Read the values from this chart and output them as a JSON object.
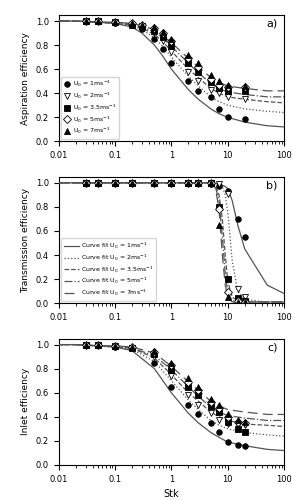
{
  "title_a": "a)",
  "title_b": "b)",
  "title_c": "c)",
  "xlabel": "Stk",
  "ylabel_a": "Aspiration efficiency",
  "ylabel_b": "Transmission efficiency",
  "ylabel_c": "Inlet efficiency",
  "speeds": [
    "1",
    "2",
    "3.5",
    "5",
    "7"
  ],
  "markers_a": {
    "1": {
      "x": [
        0.03,
        0.05,
        0.1,
        0.2,
        0.3,
        0.5,
        0.7,
        1.0,
        2.0,
        3.0,
        5.0,
        7.0,
        10.0,
        20.0
      ],
      "y": [
        1.0,
        1.0,
        0.98,
        0.97,
        0.93,
        0.85,
        0.77,
        0.65,
        0.5,
        0.42,
        0.37,
        0.27,
        0.2,
        0.19
      ],
      "marker": "o",
      "ms": 4,
      "filled": true
    },
    "2": {
      "x": [
        0.03,
        0.05,
        0.1,
        0.2,
        0.3,
        0.5,
        0.7,
        1.0,
        2.0,
        3.0,
        5.0,
        7.0,
        10.0,
        20.0
      ],
      "y": [
        1.0,
        1.0,
        0.98,
        0.97,
        0.95,
        0.9,
        0.83,
        0.74,
        0.58,
        0.5,
        0.43,
        0.4,
        0.37,
        0.35
      ],
      "marker": "v",
      "ms": 5,
      "filled": false
    },
    "3.5": {
      "x": [
        0.03,
        0.05,
        0.1,
        0.2,
        0.3,
        0.5,
        0.7,
        1.0,
        2.0,
        3.0,
        5.0,
        7.0,
        10.0,
        20.0
      ],
      "y": [
        1.0,
        1.0,
        0.99,
        0.97,
        0.96,
        0.92,
        0.87,
        0.79,
        0.65,
        0.58,
        0.49,
        0.44,
        0.42,
        0.42
      ],
      "marker": "s",
      "ms": 4,
      "filled": true
    },
    "5": {
      "x": [
        0.03,
        0.05,
        0.1,
        0.2,
        0.3,
        0.5,
        0.7,
        1.0,
        2.0,
        3.0,
        5.0,
        7.0,
        10.0,
        20.0
      ],
      "y": [
        1.0,
        1.0,
        0.99,
        0.98,
        0.97,
        0.94,
        0.9,
        0.83,
        0.69,
        0.62,
        0.52,
        0.47,
        0.45,
        0.45
      ],
      "marker": "D",
      "ms": 4,
      "filled": false
    },
    "7": {
      "x": [
        0.03,
        0.05,
        0.1,
        0.2,
        0.3,
        0.5,
        0.7,
        1.0,
        2.0,
        3.0,
        5.0,
        7.0,
        10.0,
        20.0
      ],
      "y": [
        1.0,
        1.0,
        0.99,
        0.98,
        0.97,
        0.95,
        0.91,
        0.85,
        0.72,
        0.65,
        0.55,
        0.5,
        0.47,
        0.46
      ],
      "marker": "^",
      "ms": 4,
      "filled": true
    }
  },
  "curves_a": {
    "1": {
      "style": "solid",
      "x": [
        0.01,
        0.02,
        0.05,
        0.1,
        0.2,
        0.3,
        0.5,
        0.7,
        1,
        2,
        3,
        5,
        7,
        10,
        20,
        50,
        100
      ],
      "y": [
        1.0,
        1.0,
        0.99,
        0.98,
        0.95,
        0.9,
        0.8,
        0.71,
        0.6,
        0.43,
        0.35,
        0.27,
        0.23,
        0.2,
        0.16,
        0.13,
        0.12
      ]
    },
    "2": {
      "style": "dotted",
      "x": [
        0.01,
        0.02,
        0.05,
        0.1,
        0.2,
        0.3,
        0.5,
        0.7,
        1,
        2,
        3,
        5,
        7,
        10,
        20,
        50,
        100
      ],
      "y": [
        1.0,
        1.0,
        0.99,
        0.98,
        0.96,
        0.93,
        0.86,
        0.79,
        0.7,
        0.54,
        0.46,
        0.37,
        0.33,
        0.3,
        0.27,
        0.25,
        0.24
      ]
    },
    "3.5": {
      "style": "dashed",
      "x": [
        0.01,
        0.02,
        0.05,
        0.1,
        0.2,
        0.3,
        0.5,
        0.7,
        1,
        2,
        3,
        5,
        7,
        10,
        20,
        50,
        100
      ],
      "y": [
        1.0,
        1.0,
        0.99,
        0.98,
        0.97,
        0.94,
        0.89,
        0.83,
        0.75,
        0.6,
        0.53,
        0.44,
        0.4,
        0.37,
        0.35,
        0.33,
        0.32
      ]
    },
    "5": {
      "style": "dashdot",
      "x": [
        0.01,
        0.02,
        0.05,
        0.1,
        0.2,
        0.3,
        0.5,
        0.7,
        1,
        2,
        3,
        5,
        7,
        10,
        20,
        50,
        100
      ],
      "y": [
        1.0,
        1.0,
        0.99,
        0.99,
        0.97,
        0.95,
        0.91,
        0.86,
        0.79,
        0.65,
        0.57,
        0.48,
        0.44,
        0.41,
        0.39,
        0.37,
        0.37
      ]
    },
    "7": {
      "style": "loosedash",
      "x": [
        0.01,
        0.02,
        0.05,
        0.1,
        0.2,
        0.3,
        0.5,
        0.7,
        1,
        2,
        3,
        5,
        7,
        10,
        20,
        50,
        100
      ],
      "y": [
        1.0,
        1.0,
        0.99,
        0.99,
        0.98,
        0.96,
        0.93,
        0.88,
        0.82,
        0.69,
        0.62,
        0.53,
        0.49,
        0.46,
        0.44,
        0.42,
        0.42
      ]
    }
  },
  "markers_b": {
    "1": {
      "x": [
        0.03,
        0.05,
        0.1,
        0.2,
        0.5,
        1.0,
        2.0,
        3.0,
        5.0,
        7.0,
        10.0,
        15.0,
        20.0
      ],
      "y": [
        1.0,
        1.0,
        1.0,
        1.0,
        1.0,
        1.0,
        1.0,
        1.0,
        0.99,
        0.97,
        0.93,
        0.7,
        0.55
      ],
      "marker": "o",
      "ms": 4,
      "filled": true
    },
    "2": {
      "x": [
        0.03,
        0.05,
        0.1,
        0.2,
        0.5,
        1.0,
        2.0,
        3.0,
        5.0,
        7.0,
        10.0,
        15.0,
        20.0
      ],
      "y": [
        1.0,
        1.0,
        1.0,
        1.0,
        1.0,
        1.0,
        1.0,
        1.0,
        1.0,
        0.99,
        0.91,
        0.12,
        0.05
      ],
      "marker": "v",
      "ms": 5,
      "filled": false
    },
    "3.5": {
      "x": [
        0.03,
        0.05,
        0.1,
        0.2,
        0.5,
        1.0,
        2.0,
        3.0,
        5.0,
        7.0,
        10.0,
        15.0,
        20.0
      ],
      "y": [
        1.0,
        1.0,
        1.0,
        1.0,
        1.0,
        1.0,
        1.0,
        1.0,
        1.0,
        0.8,
        0.2,
        0.04,
        0.02
      ],
      "marker": "s",
      "ms": 4,
      "filled": true
    },
    "5": {
      "x": [
        0.03,
        0.05,
        0.1,
        0.2,
        0.5,
        1.0,
        2.0,
        3.0,
        5.0,
        7.0,
        10.0,
        15.0,
        20.0
      ],
      "y": [
        1.0,
        1.0,
        1.0,
        1.0,
        1.0,
        1.0,
        1.0,
        1.0,
        1.0,
        0.78,
        0.09,
        0.02,
        0.01
      ],
      "marker": "D",
      "ms": 4,
      "filled": false
    },
    "7": {
      "x": [
        0.03,
        0.05,
        0.1,
        0.2,
        0.5,
        1.0,
        2.0,
        3.0,
        5.0,
        7.0,
        10.0,
        15.0,
        20.0
      ],
      "y": [
        1.0,
        1.0,
        1.0,
        1.0,
        1.0,
        1.0,
        1.0,
        1.0,
        1.0,
        0.65,
        0.05,
        0.01,
        0.01
      ],
      "marker": "^",
      "ms": 4,
      "filled": true
    }
  },
  "curves_b": {
    "1": {
      "style": "solid",
      "x": [
        0.01,
        0.1,
        1,
        3,
        5,
        7,
        9,
        10,
        12,
        15,
        20,
        50,
        100
      ],
      "y": [
        1.0,
        1.0,
        1.0,
        1.0,
        1.0,
        0.99,
        0.97,
        0.95,
        0.85,
        0.65,
        0.45,
        0.15,
        0.08
      ]
    },
    "2": {
      "style": "dotted",
      "x": [
        0.01,
        0.1,
        1,
        3,
        5,
        7,
        8,
        9,
        10,
        12,
        15,
        20,
        50,
        100
      ],
      "y": [
        1.0,
        1.0,
        1.0,
        1.0,
        1.0,
        0.99,
        0.97,
        0.9,
        0.75,
        0.35,
        0.1,
        0.03,
        0.01,
        0.01
      ]
    },
    "3.5": {
      "style": "dashed",
      "x": [
        0.01,
        0.1,
        1,
        3,
        5,
        6,
        7,
        8,
        9,
        10,
        12,
        15,
        20,
        50,
        100
      ],
      "y": [
        1.0,
        1.0,
        1.0,
        1.0,
        1.0,
        0.98,
        0.9,
        0.7,
        0.4,
        0.18,
        0.05,
        0.02,
        0.01,
        0.01,
        0.01
      ]
    },
    "5": {
      "style": "dashdot",
      "x": [
        0.01,
        0.1,
        1,
        3,
        5,
        6,
        7,
        8,
        9,
        10,
        12,
        15,
        20,
        50,
        100
      ],
      "y": [
        1.0,
        1.0,
        1.0,
        1.0,
        1.0,
        0.97,
        0.85,
        0.55,
        0.25,
        0.09,
        0.02,
        0.01,
        0.01,
        0.01,
        0.01
      ]
    },
    "7": {
      "style": "loosedash",
      "x": [
        0.01,
        0.1,
        1,
        3,
        5,
        6,
        7,
        8,
        9,
        10,
        12,
        15,
        20,
        50,
        100
      ],
      "y": [
        1.0,
        1.0,
        1.0,
        1.0,
        1.0,
        0.96,
        0.78,
        0.4,
        0.15,
        0.05,
        0.01,
        0.01,
        0.01,
        0.01,
        0.01
      ]
    }
  },
  "markers_c": {
    "1": {
      "x": [
        0.03,
        0.05,
        0.1,
        0.2,
        0.5,
        1.0,
        2.0,
        3.0,
        5.0,
        7.0,
        10.0,
        15.0,
        20.0
      ],
      "y": [
        1.0,
        1.0,
        0.98,
        0.97,
        0.85,
        0.65,
        0.5,
        0.42,
        0.35,
        0.27,
        0.19,
        0.17,
        0.16
      ],
      "marker": "o",
      "ms": 4,
      "filled": true
    },
    "2": {
      "x": [
        0.03,
        0.05,
        0.1,
        0.2,
        0.5,
        1.0,
        2.0,
        3.0,
        5.0,
        7.0,
        10.0,
        15.0,
        20.0
      ],
      "y": [
        1.0,
        1.0,
        0.98,
        0.97,
        0.9,
        0.74,
        0.58,
        0.5,
        0.43,
        0.37,
        0.34,
        0.33,
        0.33
      ],
      "marker": "v",
      "ms": 5,
      "filled": false
    },
    "3.5": {
      "x": [
        0.03,
        0.05,
        0.1,
        0.2,
        0.5,
        1.0,
        2.0,
        3.0,
        5.0,
        7.0,
        10.0,
        15.0,
        20.0
      ],
      "y": [
        1.0,
        1.0,
        0.99,
        0.97,
        0.92,
        0.79,
        0.65,
        0.58,
        0.49,
        0.44,
        0.36,
        0.3,
        0.27
      ],
      "marker": "s",
      "ms": 4,
      "filled": true
    },
    "5": {
      "x": [
        0.03,
        0.05,
        0.1,
        0.2,
        0.5,
        1.0,
        2.0,
        3.0,
        5.0,
        7.0,
        10.0,
        15.0,
        20.0
      ],
      "y": [
        1.0,
        1.0,
        0.99,
        0.98,
        0.94,
        0.83,
        0.69,
        0.62,
        0.52,
        0.47,
        0.4,
        0.36,
        0.35
      ],
      "marker": "D",
      "ms": 4,
      "filled": false
    },
    "7": {
      "x": [
        0.03,
        0.05,
        0.1,
        0.2,
        0.5,
        1.0,
        2.0,
        3.0,
        5.0,
        7.0,
        10.0,
        15.0,
        20.0
      ],
      "y": [
        1.0,
        1.0,
        0.99,
        0.98,
        0.95,
        0.85,
        0.72,
        0.65,
        0.55,
        0.5,
        0.42,
        0.37,
        0.36
      ],
      "marker": "^",
      "ms": 4,
      "filled": true
    }
  },
  "curves_c": {
    "1": {
      "style": "solid",
      "x": [
        0.01,
        0.02,
        0.05,
        0.1,
        0.2,
        0.5,
        1,
        2,
        3,
        5,
        7,
        10,
        20,
        50,
        100
      ],
      "y": [
        1.0,
        1.0,
        0.99,
        0.98,
        0.95,
        0.8,
        0.6,
        0.43,
        0.35,
        0.27,
        0.23,
        0.19,
        0.16,
        0.13,
        0.12
      ]
    },
    "2": {
      "style": "dotted",
      "x": [
        0.01,
        0.02,
        0.05,
        0.1,
        0.2,
        0.5,
        1,
        2,
        3,
        5,
        7,
        10,
        20,
        50,
        100
      ],
      "y": [
        1.0,
        1.0,
        0.99,
        0.98,
        0.96,
        0.86,
        0.7,
        0.54,
        0.46,
        0.37,
        0.33,
        0.3,
        0.27,
        0.25,
        0.24
      ]
    },
    "3.5": {
      "style": "dashed",
      "x": [
        0.01,
        0.02,
        0.05,
        0.1,
        0.2,
        0.5,
        1,
        2,
        3,
        5,
        7,
        10,
        20,
        50,
        100
      ],
      "y": [
        1.0,
        1.0,
        0.99,
        0.98,
        0.97,
        0.89,
        0.75,
        0.6,
        0.53,
        0.44,
        0.4,
        0.37,
        0.34,
        0.33,
        0.32
      ]
    },
    "5": {
      "style": "dashdot",
      "x": [
        0.01,
        0.02,
        0.05,
        0.1,
        0.2,
        0.5,
        1,
        2,
        3,
        5,
        7,
        10,
        20,
        50,
        100
      ],
      "y": [
        1.0,
        1.0,
        0.99,
        0.99,
        0.97,
        0.91,
        0.79,
        0.65,
        0.57,
        0.48,
        0.44,
        0.41,
        0.39,
        0.37,
        0.37
      ]
    },
    "7": {
      "style": "loosedash",
      "x": [
        0.01,
        0.02,
        0.05,
        0.1,
        0.2,
        0.5,
        1,
        2,
        3,
        5,
        7,
        10,
        20,
        50,
        100
      ],
      "y": [
        1.0,
        1.0,
        0.99,
        0.99,
        0.98,
        0.93,
        0.82,
        0.69,
        0.62,
        0.53,
        0.49,
        0.46,
        0.44,
        0.42,
        0.42
      ]
    }
  },
  "legend_a": {
    "1": {
      "label": "U$_0$ = 1ms$^{-1}$",
      "marker": "o",
      "filled": true
    },
    "2": {
      "label": "U$_0$ = 2ms$^{-1}$",
      "marker": "v",
      "filled": false
    },
    "3.5": {
      "label": "U$_0$ = 3.5ms$^{-1}$",
      "marker": "s",
      "filled": true
    },
    "5": {
      "label": "U$_0$ = 5ms$^{-1}$",
      "marker": "D",
      "filled": false
    },
    "7": {
      "label": "U$_0$ = 7ms$^{-1}$",
      "marker": "^",
      "filled": true
    }
  },
  "legend_b": {
    "1": {
      "label": "Curve fit U$_0$ = 1ms$^{-1}$",
      "style": "solid"
    },
    "2": {
      "label": "Curve fit U$_0$ = 2ms$^{-1}$",
      "style": "dotted"
    },
    "3.5": {
      "label": "Curve fit U$_0$ = 3.5ms$^{-1}$",
      "style": "dashed"
    },
    "5": {
      "label": "Curve fit U$_0$ = 5ms$^{-1}$",
      "style": "dashdot"
    },
    "7": {
      "label": "Curve fit U$_0$ = 7ms$^{-1}$",
      "style": "loosedash"
    }
  },
  "line_color": "#555555",
  "yticks": [
    0.0,
    0.2,
    0.4,
    0.6,
    0.8,
    1.0
  ]
}
